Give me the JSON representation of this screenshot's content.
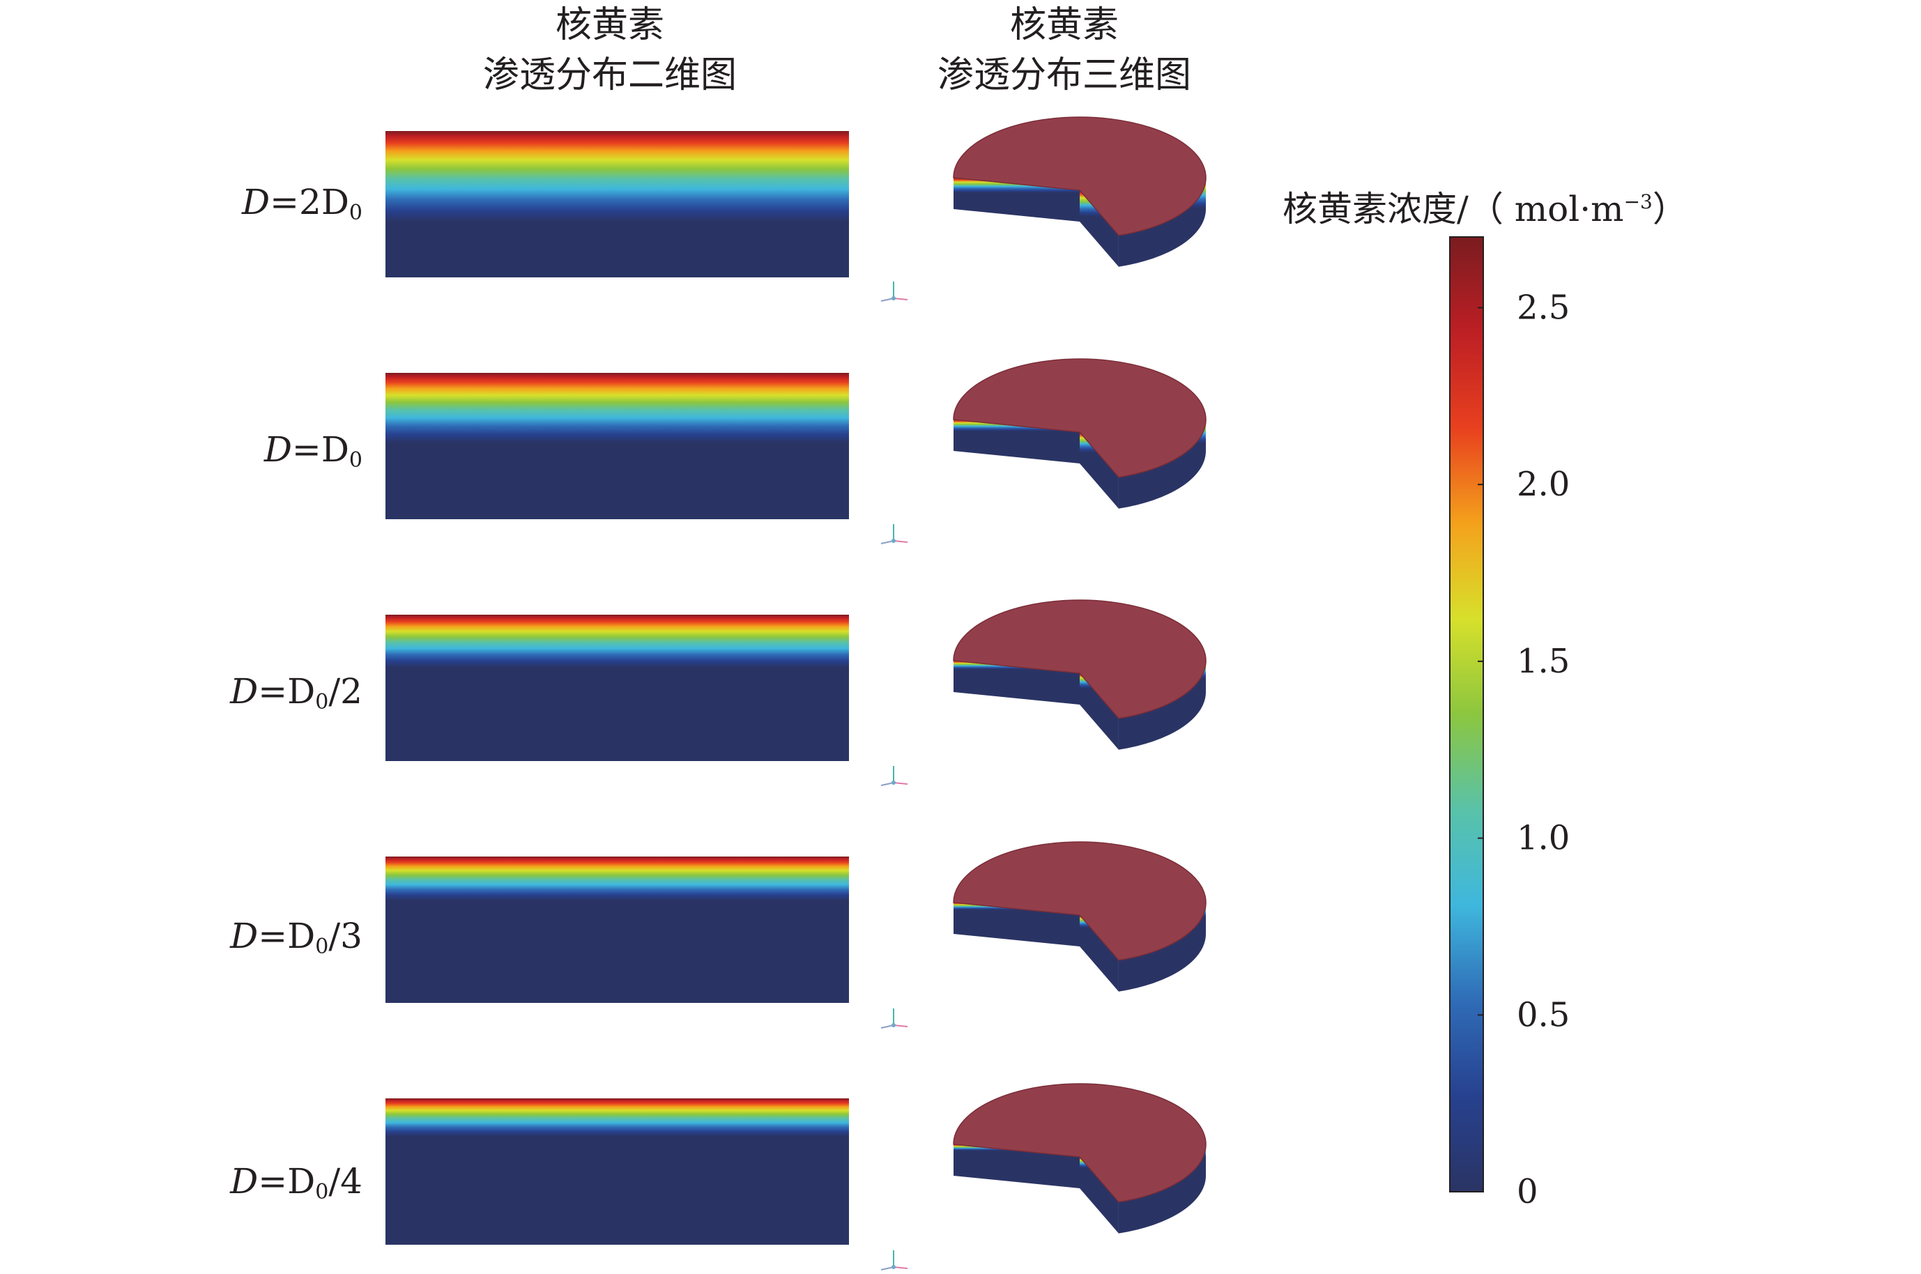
{
  "headers": {
    "col_2d": {
      "line1": "核黄素",
      "line2": "渗透分布二维图"
    },
    "col_3d": {
      "line1": "核黄素",
      "line2": "渗透分布三维图"
    }
  },
  "rows": [
    {
      "label_var": "D",
      "label_eq": "=2D",
      "label_sub": "0",
      "label_tail": "",
      "penetration_fraction": 0.62
    },
    {
      "label_var": "D",
      "label_eq": "=D",
      "label_sub": "0",
      "label_tail": "",
      "penetration_fraction": 0.48
    },
    {
      "label_var": "D",
      "label_eq": "=D",
      "label_sub": "0",
      "label_tail": "/2",
      "penetration_fraction": 0.36
    },
    {
      "label_var": "D",
      "label_eq": "=D",
      "label_sub": "0",
      "label_tail": "/3",
      "penetration_fraction": 0.3
    },
    {
      "label_var": "D",
      "label_eq": "=D",
      "label_sub": "0",
      "label_tail": "/4",
      "penetration_fraction": 0.26
    }
  ],
  "colorbar": {
    "title_main": "核黄素浓度/（ mol·m",
    "title_sup": "−3",
    "title_close": "）",
    "min": 0,
    "max": 2.7,
    "ticks": [
      {
        "value": 2.5,
        "label": "2.5"
      },
      {
        "value": 2.0,
        "label": "2.0"
      },
      {
        "value": 1.5,
        "label": "1.5"
      },
      {
        "value": 1.0,
        "label": "1.0"
      },
      {
        "value": 0.5,
        "label": "0.5"
      },
      {
        "value": 0,
        "label": "0"
      }
    ],
    "colormap": [
      "#2a3464",
      "#27418f",
      "#2f6cb7",
      "#3fb7dd",
      "#59c2a9",
      "#8cc63f",
      "#d7e02b",
      "#f4a11c",
      "#e8401f",
      "#bd1f24",
      "#7a1c20"
    ]
  },
  "disk_top_color": "#933f4b",
  "disk_side_color": "#2a3464",
  "axis_icon": "coordinate-triad-icon"
}
